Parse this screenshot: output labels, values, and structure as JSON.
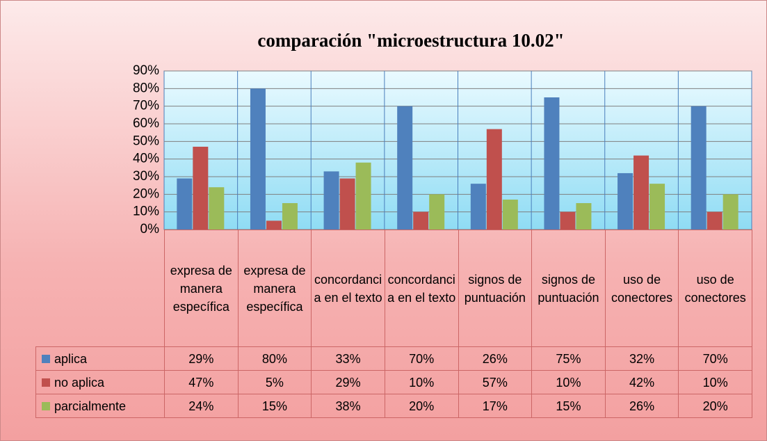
{
  "chart_data": {
    "type": "bar",
    "title": "comparación \"microestructura 10.02\"",
    "categories": [
      "expresa de manera específica",
      "expresa de manera específica",
      "concordancia en el texto",
      "concordancia en el texto",
      "signos de puntuación",
      "signos de puntuación",
      "uso de conectores",
      "uso de conectores"
    ],
    "series": [
      {
        "name": "aplica",
        "color": "#4f81bd",
        "values": [
          29,
          80,
          33,
          70,
          26,
          75,
          32,
          70
        ],
        "value_labels": [
          "29%",
          "80%",
          "33%",
          "70%",
          "26%",
          "75%",
          "32%",
          "70%"
        ]
      },
      {
        "name": "no aplica",
        "color": "#c0504d",
        "values": [
          47,
          5,
          29,
          10,
          57,
          10,
          42,
          10
        ],
        "value_labels": [
          "47%",
          "5%",
          "29%",
          "10%",
          "57%",
          "10%",
          "42%",
          "10%"
        ]
      },
      {
        "name": "parcialmente",
        "color": "#9bbb59",
        "values": [
          24,
          15,
          38,
          20,
          17,
          15,
          26,
          20
        ],
        "value_labels": [
          "24%",
          "15%",
          "38%",
          "20%",
          "17%",
          "15%",
          "26%",
          "20%"
        ]
      }
    ],
    "ylim": [
      0,
      90
    ],
    "yticks": [
      {
        "value": 0,
        "label": "0%"
      },
      {
        "value": 10,
        "label": "10%"
      },
      {
        "value": 20,
        "label": "20%"
      },
      {
        "value": 30,
        "label": "30%"
      },
      {
        "value": 40,
        "label": "40%"
      },
      {
        "value": 50,
        "label": "50%"
      },
      {
        "value": 60,
        "label": "60%"
      },
      {
        "value": 70,
        "label": "70%"
      },
      {
        "value": 80,
        "label": "80%"
      },
      {
        "value": 90,
        "label": "90%"
      }
    ],
    "grid": true
  }
}
